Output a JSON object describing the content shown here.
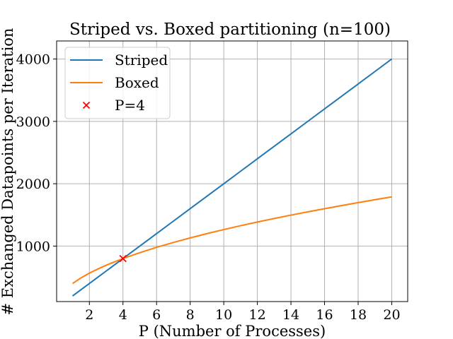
{
  "chart_data": {
    "type": "line",
    "title": "Striped vs. Boxed partitioning (n=100)",
    "xlabel": "P (Number of Processes)",
    "ylabel": "# Exchanged Datapoints per Iteration",
    "xlim": [
      0.05,
      20.95
    ],
    "ylim": [
      110,
      4290
    ],
    "xticks": [
      2,
      4,
      6,
      8,
      10,
      12,
      14,
      16,
      18,
      20
    ],
    "yticks": [
      1000,
      2000,
      3000,
      4000
    ],
    "grid": true,
    "legend_position": "upper-left",
    "x": [
      1,
      1.5,
      2,
      2.5,
      3,
      3.5,
      4,
      5,
      6,
      7,
      8,
      9,
      10,
      11,
      12,
      13,
      14,
      15,
      16,
      17,
      18,
      19,
      20
    ],
    "series": [
      {
        "name": "Striped",
        "color": "#1f77b4",
        "values": [
          200,
          300,
          400,
          500,
          600,
          700,
          800,
          1000,
          1200,
          1400,
          1600,
          1800,
          2000,
          2200,
          2400,
          2600,
          2800,
          3000,
          3200,
          3400,
          3600,
          3800,
          4000
        ]
      },
      {
        "name": "Boxed",
        "color": "#ff7f0e",
        "values": [
          400,
          490,
          566,
          632,
          693,
          748,
          800,
          894,
          980,
          1058,
          1131,
          1200,
          1265,
          1327,
          1386,
          1442,
          1497,
          1549,
          1600,
          1649,
          1697,
          1744,
          1789
        ]
      }
    ],
    "marker": {
      "name": "P=4",
      "symbol": "x",
      "color": "#ff0000",
      "x": 4,
      "y": 800
    }
  }
}
